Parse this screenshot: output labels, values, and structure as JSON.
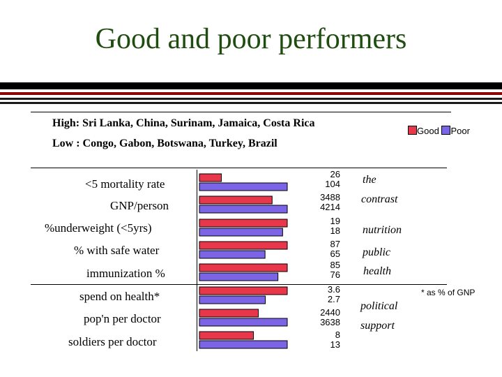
{
  "title": "Good and poor performers",
  "high_text": "High: Sri Lanka, China, Surinam, Jamaica, Costa Rica",
  "low_text": "Low : Congo, Gabon, Botswana, Turkey, Brazil",
  "footnote": "* as % of GNP",
  "notes": [
    "the",
    "contrast",
    "nutrition",
    "public",
    "health",
    "political",
    "support"
  ],
  "colors": {
    "good": "#e8364b",
    "poor": "#7b64e6",
    "title": "#1f4d10"
  },
  "chart_data": {
    "type": "bar",
    "orientation": "horizontal",
    "categories": [
      "<5 mortality rate",
      "GNP/person",
      "%underweight (<5yrs)",
      "% with safe water",
      "immunization %",
      "spend on health*",
      "pop'n per doctor",
      "soldiers per doctor"
    ],
    "series": [
      {
        "name": "Good",
        "values": [
          26,
          3488,
          19,
          87,
          85,
          3.6,
          2440,
          8
        ]
      },
      {
        "name": "Poor",
        "values": [
          104,
          4214,
          18,
          65,
          76,
          2.7,
          3638,
          13
        ]
      }
    ],
    "value_labels": [
      [
        "26",
        "104"
      ],
      [
        "3488",
        "4214"
      ],
      [
        "19",
        "18"
      ],
      [
        "87",
        "65"
      ],
      [
        "85",
        "76"
      ],
      [
        "3.6",
        "2.7"
      ],
      [
        "2440",
        "3638"
      ],
      [
        "8",
        "13"
      ]
    ],
    "legend": [
      "Good",
      "Poor"
    ],
    "legend_position": "top-right"
  }
}
